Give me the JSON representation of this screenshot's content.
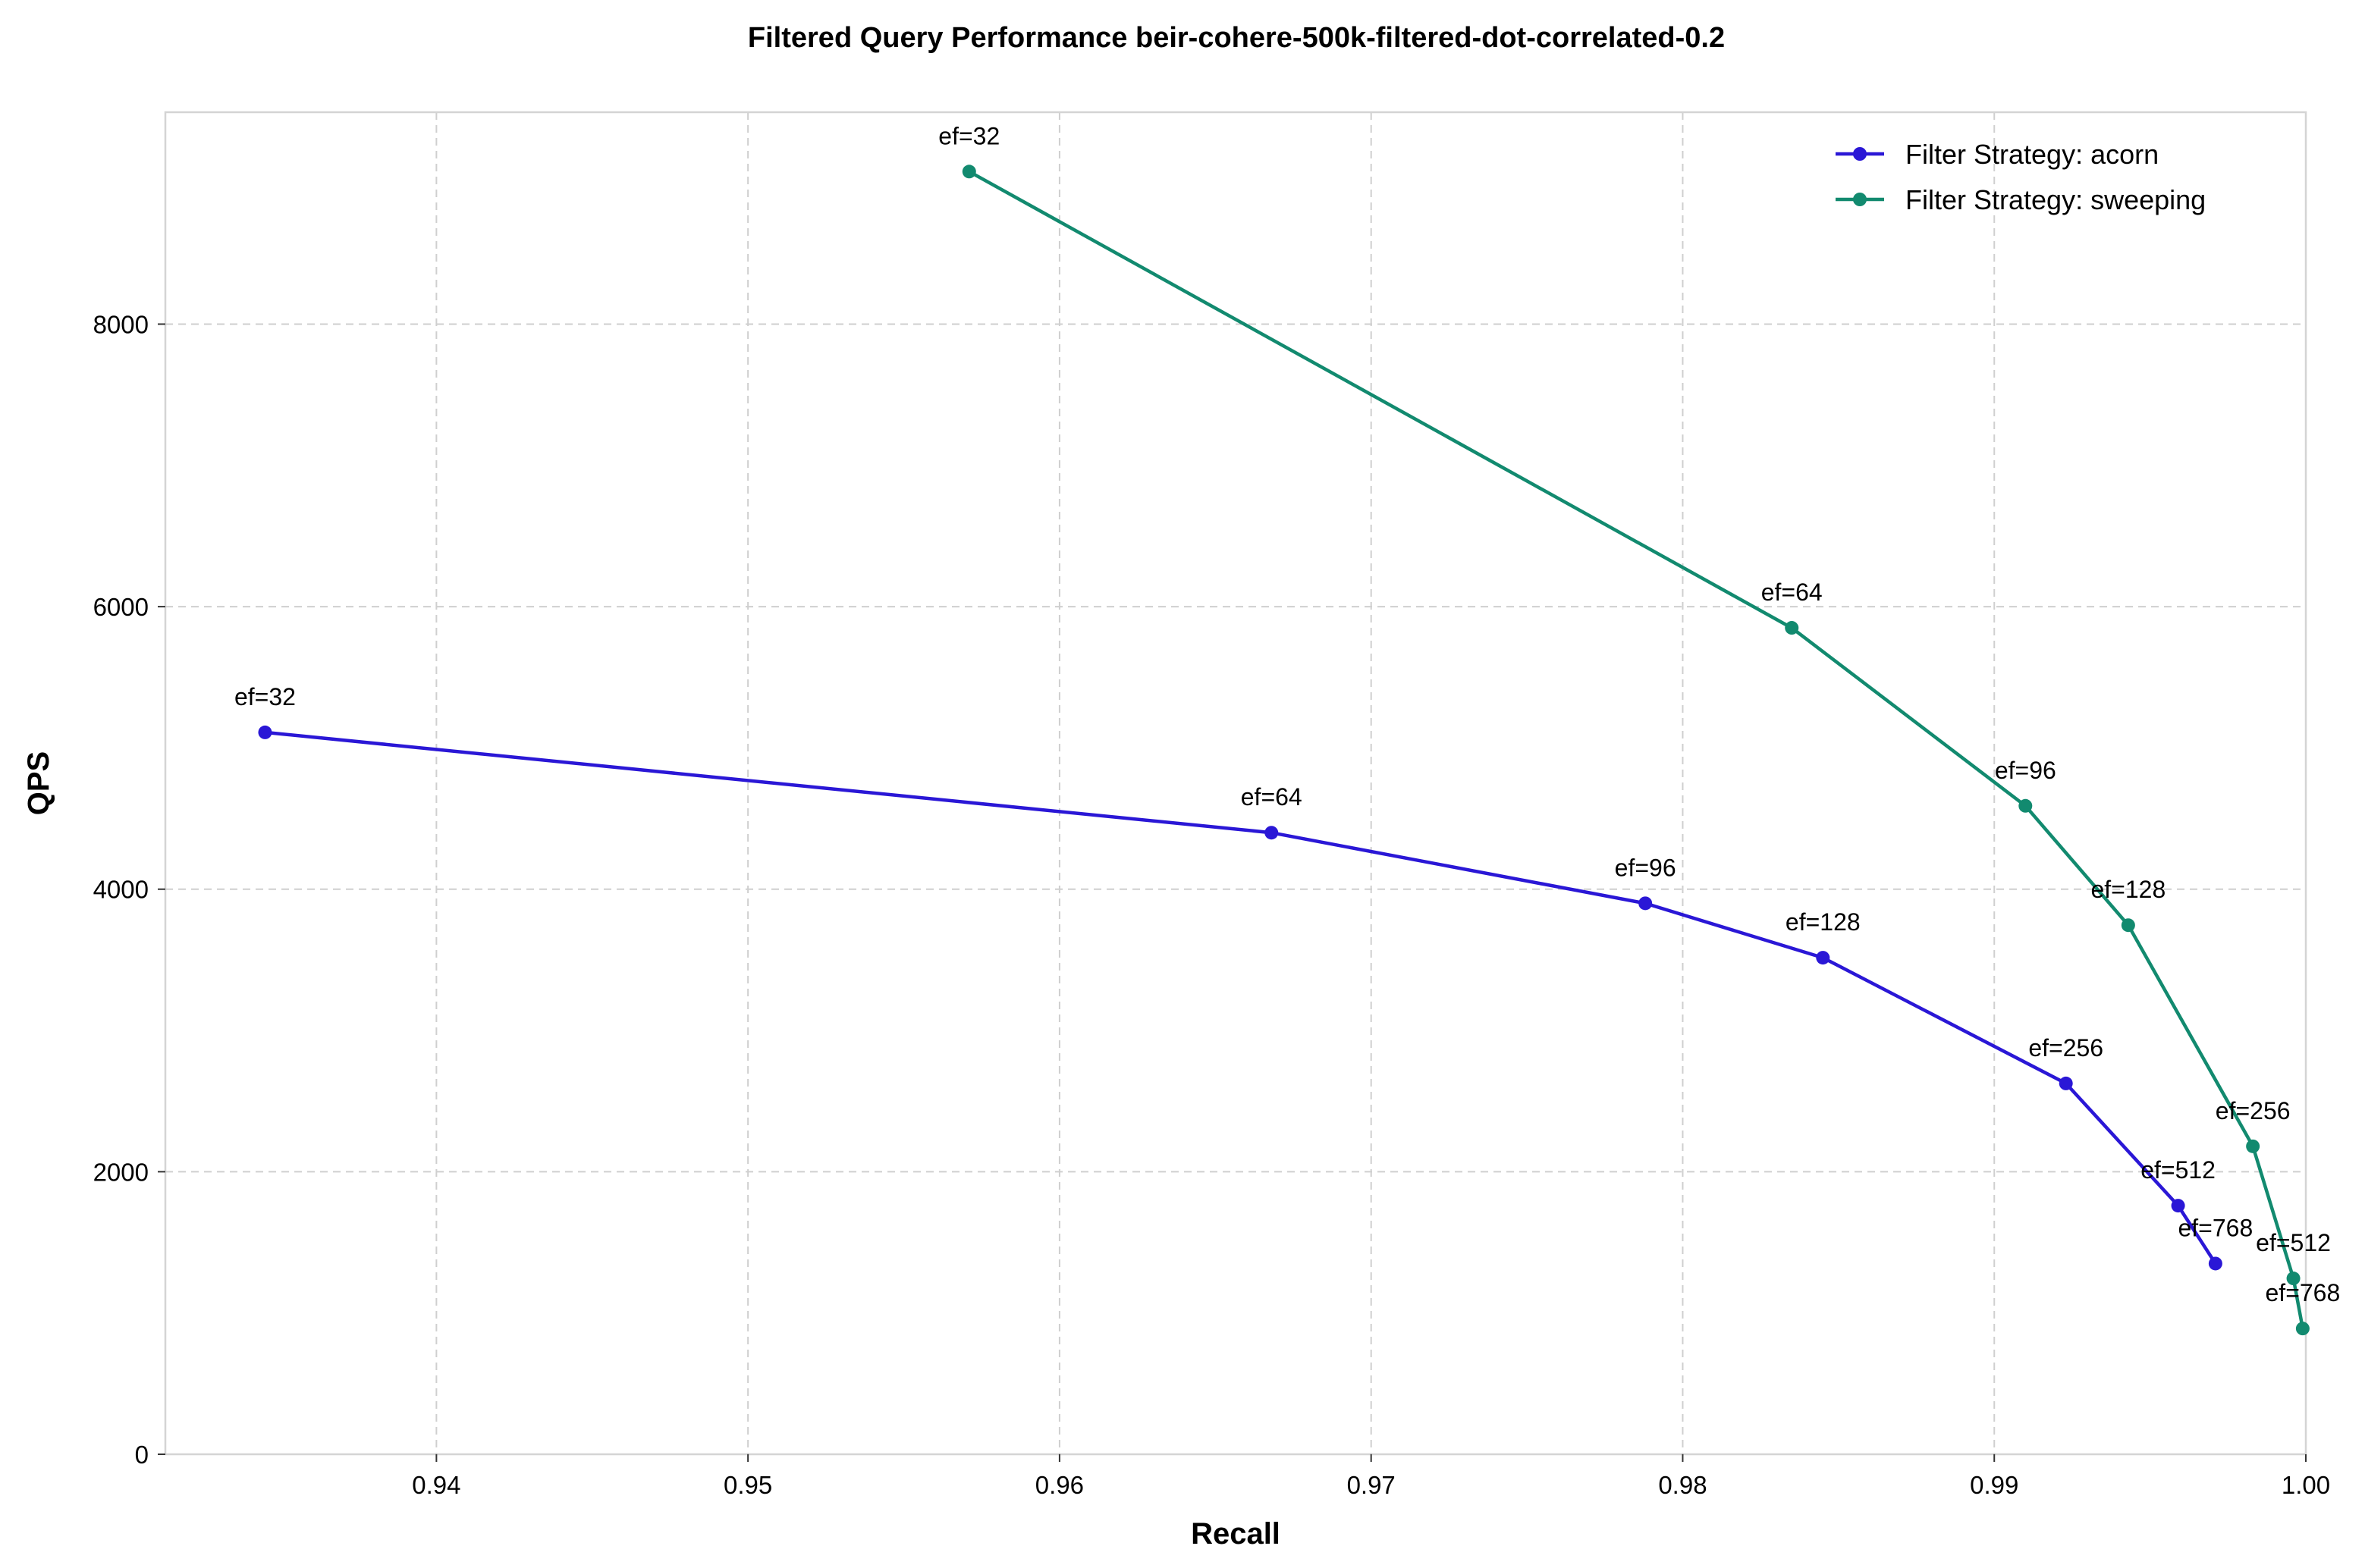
{
  "chart_data": {
    "type": "line",
    "title": "Filtered Query Performance beir-cohere-500k-filtered-dot-correlated-0.2",
    "xlabel": "Recall",
    "ylabel": "QPS",
    "xlim": [
      0.9313,
      1.0
    ],
    "ylim": [
      0,
      9500
    ],
    "xticks": [
      0.94,
      0.95,
      0.96,
      0.97,
      0.98,
      0.99,
      1.0
    ],
    "xtick_labels": [
      "0.94",
      "0.95",
      "0.96",
      "0.97",
      "0.98",
      "0.99",
      "1.00"
    ],
    "yticks": [
      0,
      2000,
      4000,
      6000,
      8000
    ],
    "ytick_labels": [
      "0",
      "2000",
      "4000",
      "6000",
      "8000"
    ],
    "grid": true,
    "legend_position": "top-right",
    "series": [
      {
        "name": "Filter Strategy: acorn",
        "color": "#2a17d6",
        "points": [
          {
            "x": 0.9345,
            "y": 5110,
            "label": "ef=32"
          },
          {
            "x": 0.9668,
            "y": 4400,
            "label": "ef=64"
          },
          {
            "x": 0.9788,
            "y": 3900,
            "label": "ef=96"
          },
          {
            "x": 0.9845,
            "y": 3515,
            "label": "ef=128"
          },
          {
            "x": 0.9923,
            "y": 2625,
            "label": "ef=256"
          },
          {
            "x": 0.9959,
            "y": 1760,
            "label": "ef=512"
          },
          {
            "x": 0.9971,
            "y": 1350,
            "label": "ef=768"
          }
        ]
      },
      {
        "name": "Filter Strategy: sweeping",
        "color": "#128a6f",
        "points": [
          {
            "x": 0.9571,
            "y": 9080,
            "label": "ef=32"
          },
          {
            "x": 0.9835,
            "y": 5850,
            "label": "ef=64"
          },
          {
            "x": 0.991,
            "y": 4590,
            "label": "ef=96"
          },
          {
            "x": 0.9943,
            "y": 3745,
            "label": "ef=128"
          },
          {
            "x": 0.9983,
            "y": 2180,
            "label": "ef=256"
          },
          {
            "x": 0.9996,
            "y": 1245,
            "label": "ef=512"
          },
          {
            "x": 0.9999,
            "y": 890,
            "label": "ef=768"
          }
        ]
      }
    ]
  }
}
